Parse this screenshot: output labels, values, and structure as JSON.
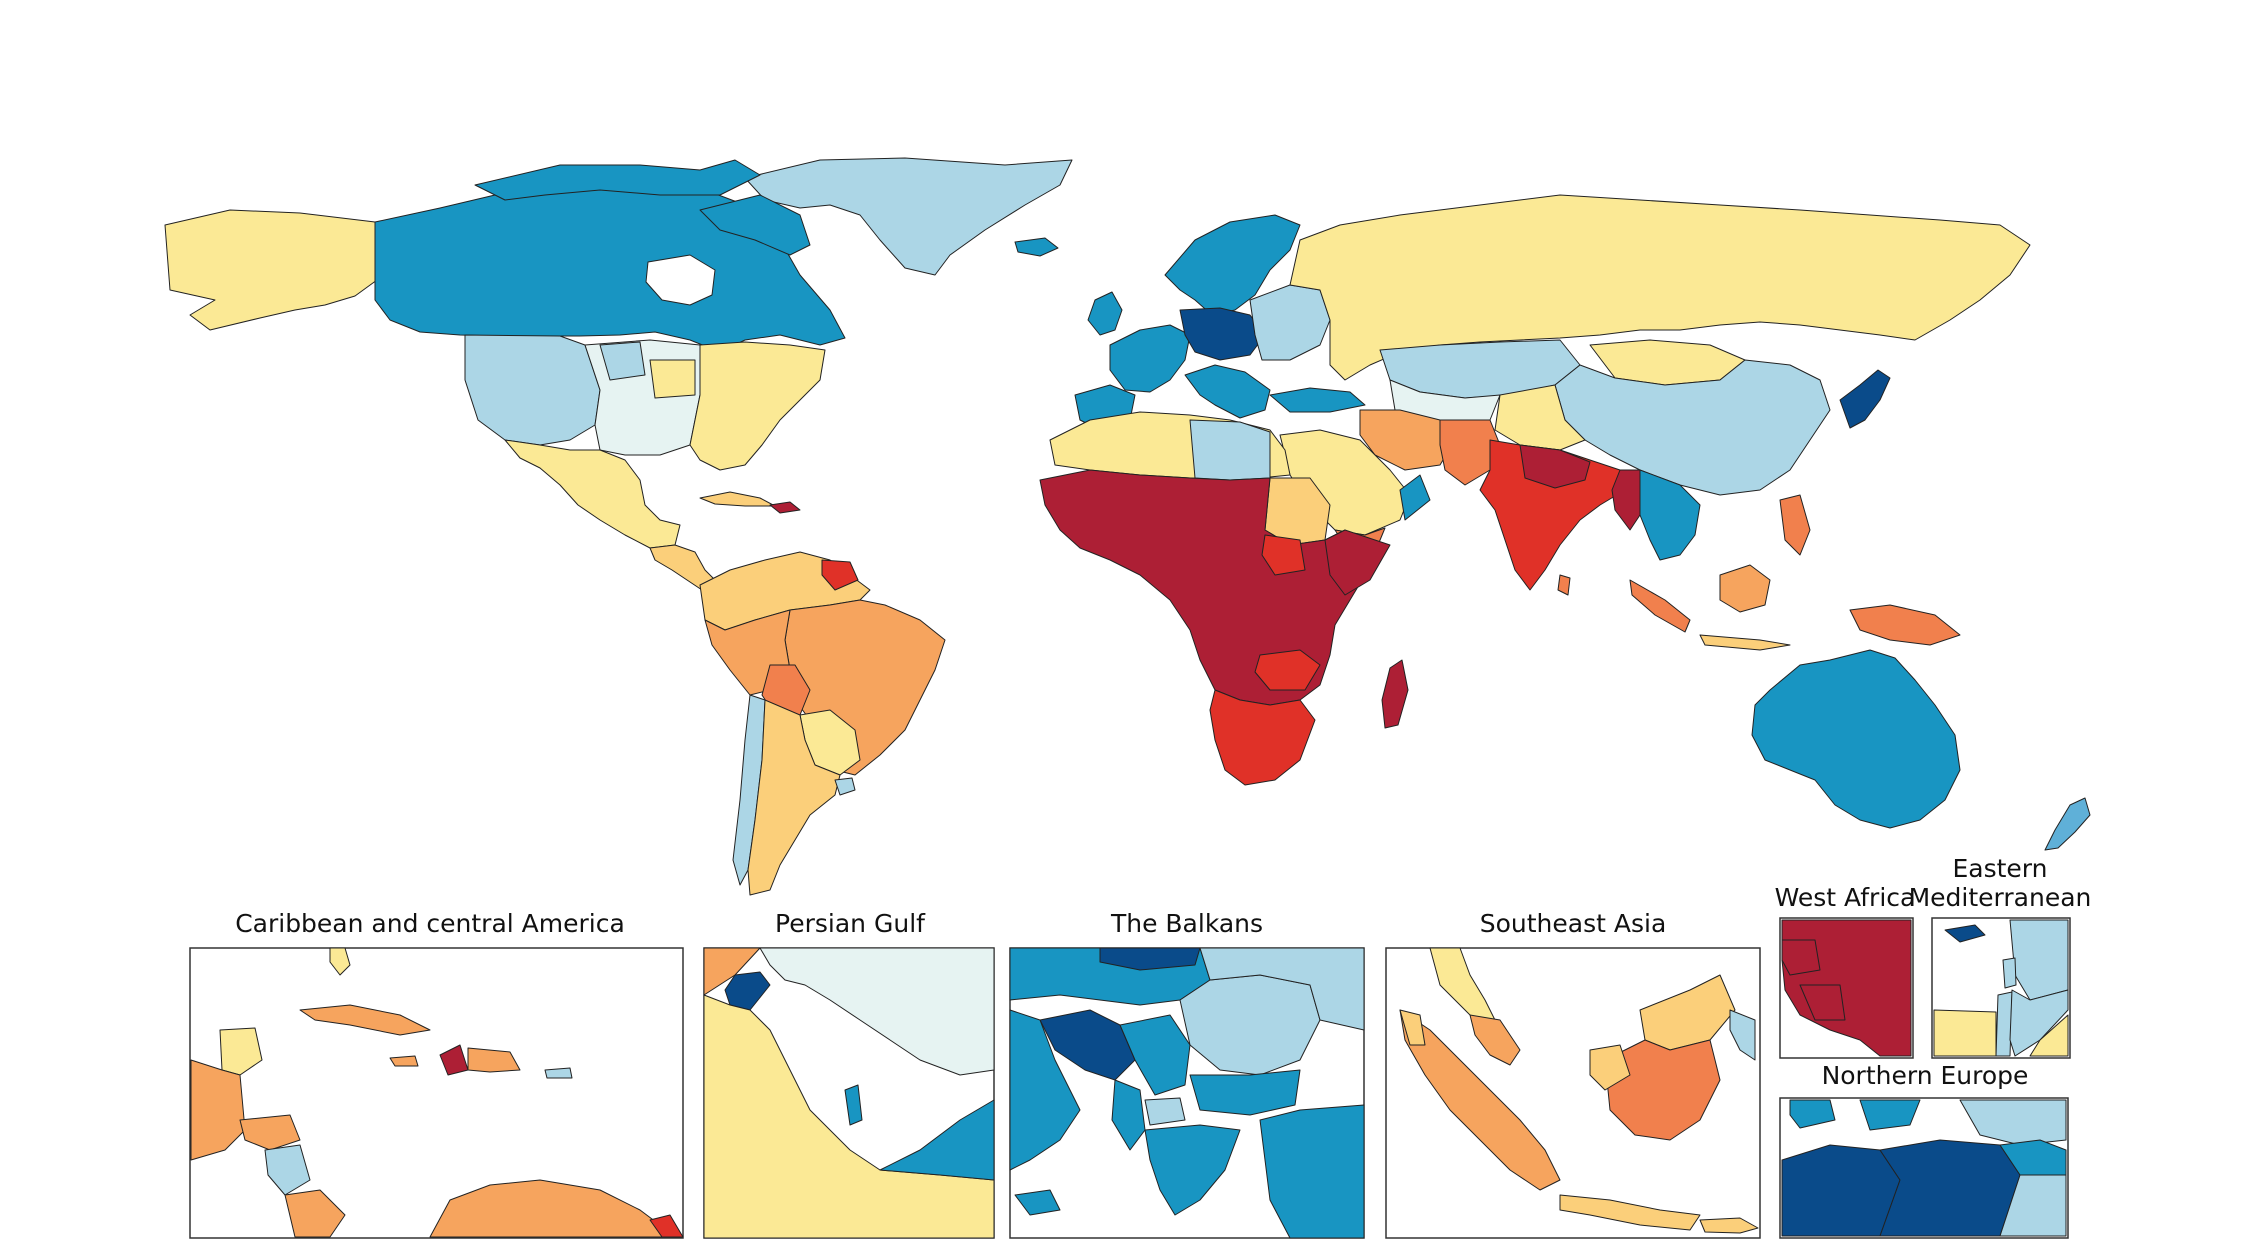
{
  "palette": {
    "c1": "#ad1f35",
    "c2": "#e03128",
    "c3": "#f1804d",
    "c4": "#f6a45e",
    "c5": "#fbcf7a",
    "c6": "#fbe995",
    "c7": "#e6f3f2",
    "c8": "#acd6e6",
    "c9": "#5fb0d8",
    "c10": "#1895c2",
    "c11": "#0a4b8a"
  },
  "insets": {
    "caribbean": {
      "title": "Caribbean and central America"
    },
    "persian_gulf": {
      "title": "Persian Gulf"
    },
    "balkans": {
      "title": "The Balkans"
    },
    "southeast_asia": {
      "title": "Southeast Asia"
    },
    "west_africa": {
      "title": "West Africa"
    },
    "eastern_med": {
      "title_line1": "Eastern",
      "title_line2": "Mediterranean"
    },
    "northern_europe": {
      "title": "Northern Europe"
    }
  }
}
